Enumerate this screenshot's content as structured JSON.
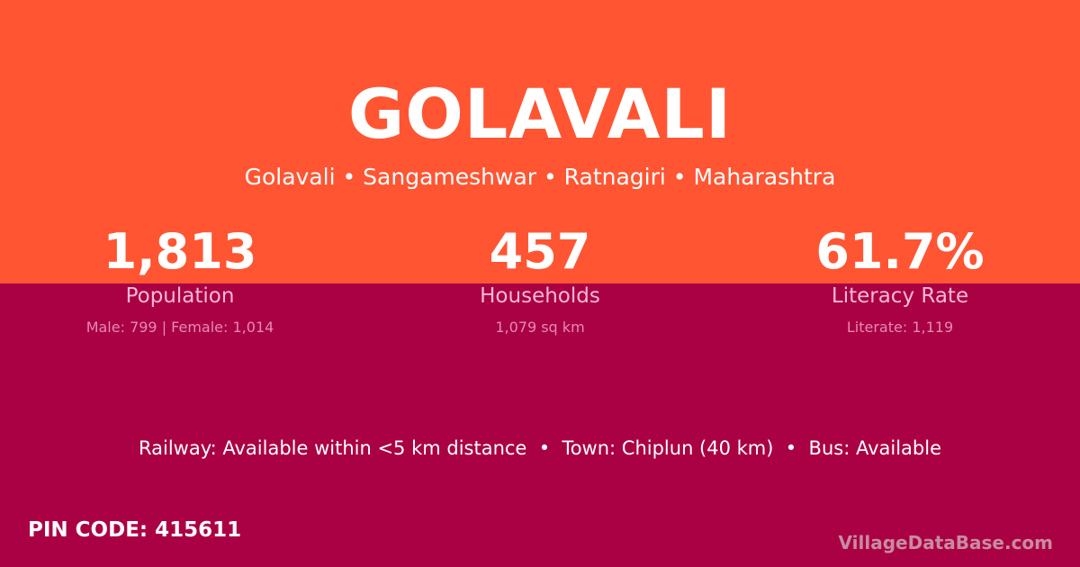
{
  "colors": {
    "header_bg": "#FF5533",
    "body_bg": "#AA0044"
  },
  "village": {
    "name": "GOLAVALI",
    "breadcrumb": "Golavali • Sangameshwar • Ratnagiri • Maharashtra"
  },
  "stats": [
    {
      "value": "1,813",
      "label": "Population",
      "detail": "Male: 799 | Female: 1,014"
    },
    {
      "value": "457",
      "label": "Households",
      "detail": "1,079 sq km"
    },
    {
      "value": "61.7%",
      "label": "Literacy Rate",
      "detail": "Literate: 1,119"
    }
  ],
  "access": "Railway: Available within <5 km distance  •  Town: Chiplun (40 km)  •  Bus: Available",
  "pin": "PIN CODE: 415611",
  "watermark": "VillageDataBase.com"
}
